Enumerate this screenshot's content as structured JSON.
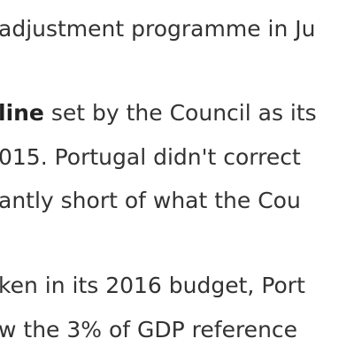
{
  "paragraphs": [
    {
      "lines": [
        "adjustment programme in Ju"
      ]
    },
    {
      "lines": [
        {
          "bold": "line",
          "rest": " set by the Council as its"
        },
        "015. Portugal didn't correct",
        "antly short of what the Cou"
      ]
    },
    {
      "lines": [
        "ken in its 2016 budget, Port",
        "w the 3% of GDP reference"
      ]
    }
  ]
}
